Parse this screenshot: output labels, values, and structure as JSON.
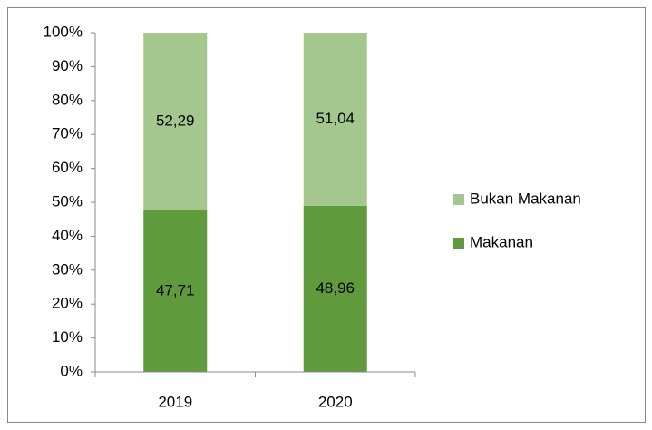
{
  "chart_data": {
    "type": "stacked_bar",
    "categories": [
      "2019",
      "2020"
    ],
    "series": [
      {
        "name": "Makanan",
        "color": "#5f9a3c",
        "values": [
          47.71,
          48.96
        ],
        "value_labels": [
          "47,71",
          "48,96"
        ]
      },
      {
        "name": "Bukan Makanan",
        "color": "#a4c78e",
        "values": [
          52.29,
          51.04
        ],
        "value_labels": [
          "52,29",
          "51,04"
        ]
      }
    ],
    "ylim": [
      0,
      100
    ],
    "yticks": [
      {
        "value": 0,
        "label": "0%"
      },
      {
        "value": 10,
        "label": "10%"
      },
      {
        "value": 20,
        "label": "20%"
      },
      {
        "value": 30,
        "label": "30%"
      },
      {
        "value": 40,
        "label": "40%"
      },
      {
        "value": 50,
        "label": "50%"
      },
      {
        "value": 60,
        "label": "60%"
      },
      {
        "value": 70,
        "label": "70%"
      },
      {
        "value": 80,
        "label": "80%"
      },
      {
        "value": 90,
        "label": "90%"
      },
      {
        "value": 100,
        "label": "100%"
      }
    ],
    "legend": "right"
  }
}
